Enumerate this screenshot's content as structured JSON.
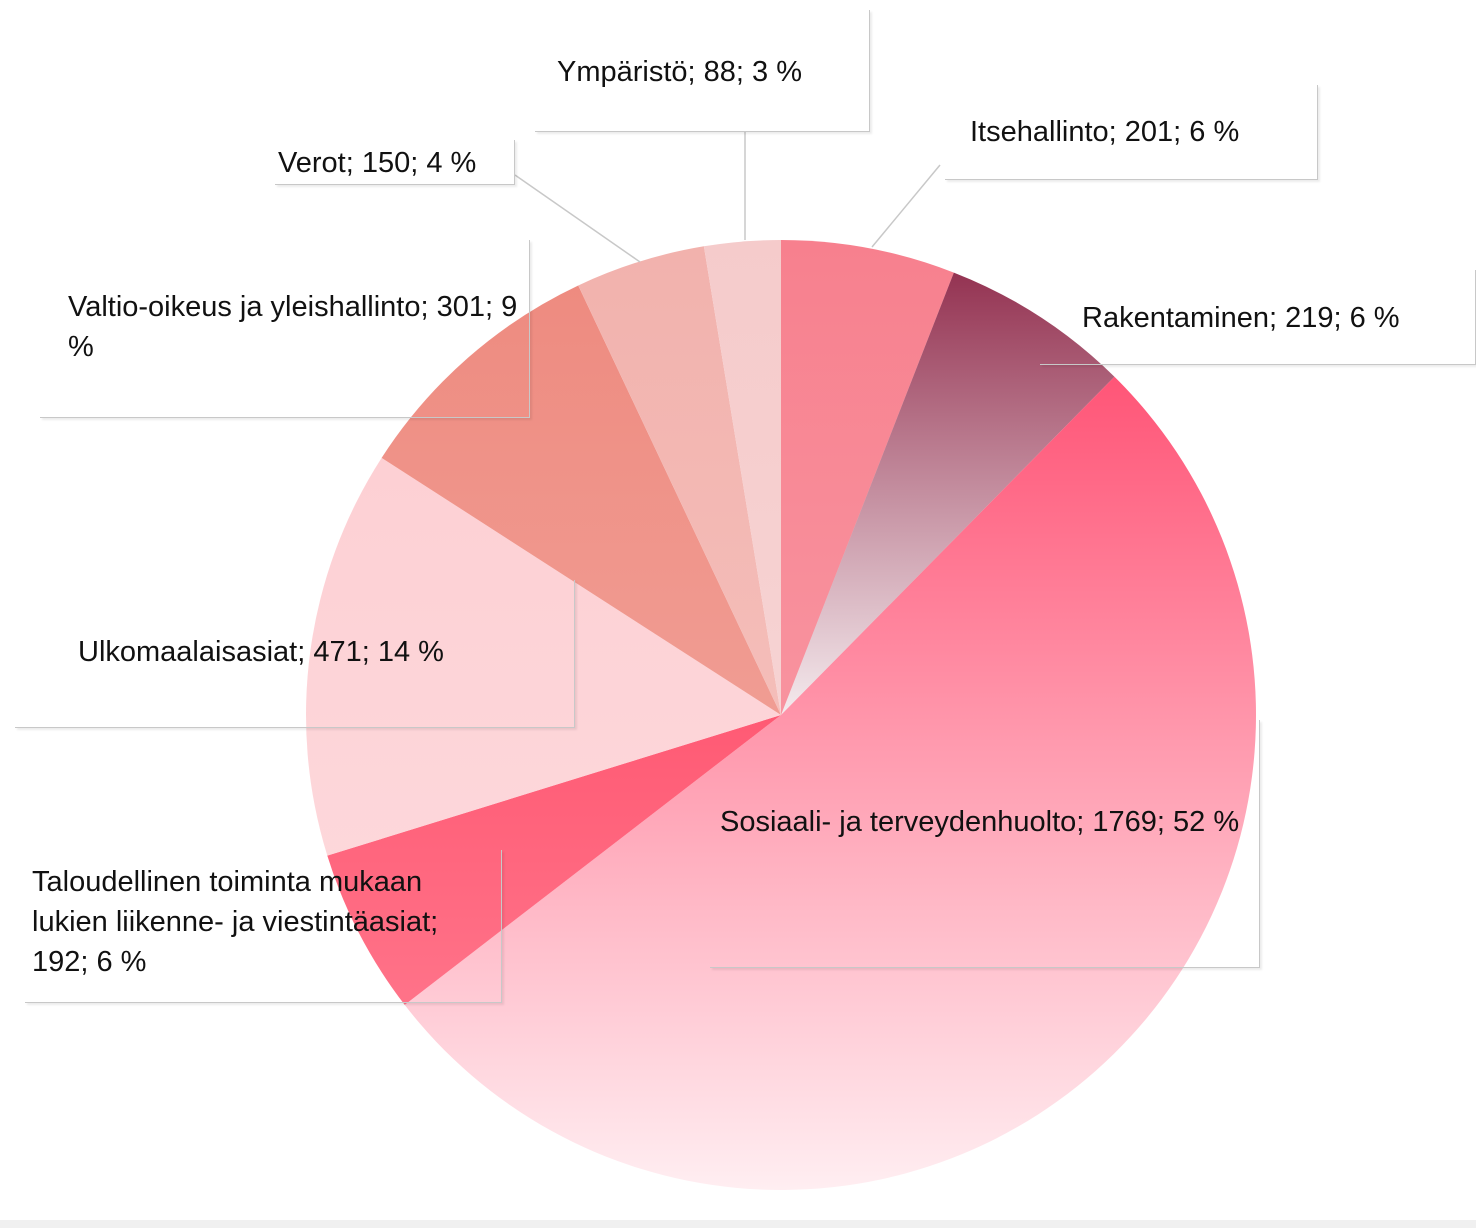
{
  "chart_data": {
    "type": "pie",
    "values": [
      201,
      219,
      1769,
      192,
      471,
      301,
      150,
      88
    ],
    "value_labels": [
      "Itsehallinto; 201; 6 %",
      "Rakentaminen; 219; 6 %",
      "Sosiaali- ja terveydenhuolto; 1769; 52 %",
      "Taloudellinen toiminta mukaan lukien liikenne- ja viestintäasiat; 192; 6 %",
      "Ulkomaalaisasiat; 471; 14 %",
      "Valtio-oikeus ja yleishallinto; 301; 9 %",
      "Verot; 150; 4 %",
      "Ympäristö; 88; 3 %"
    ],
    "colors": [
      "#f7808e",
      "#943352",
      "#ff5577",
      "#ff5a74",
      "#fdd0d4",
      "#ee8b80",
      "#f2b2ad",
      "#f5cbcb"
    ]
  }
}
